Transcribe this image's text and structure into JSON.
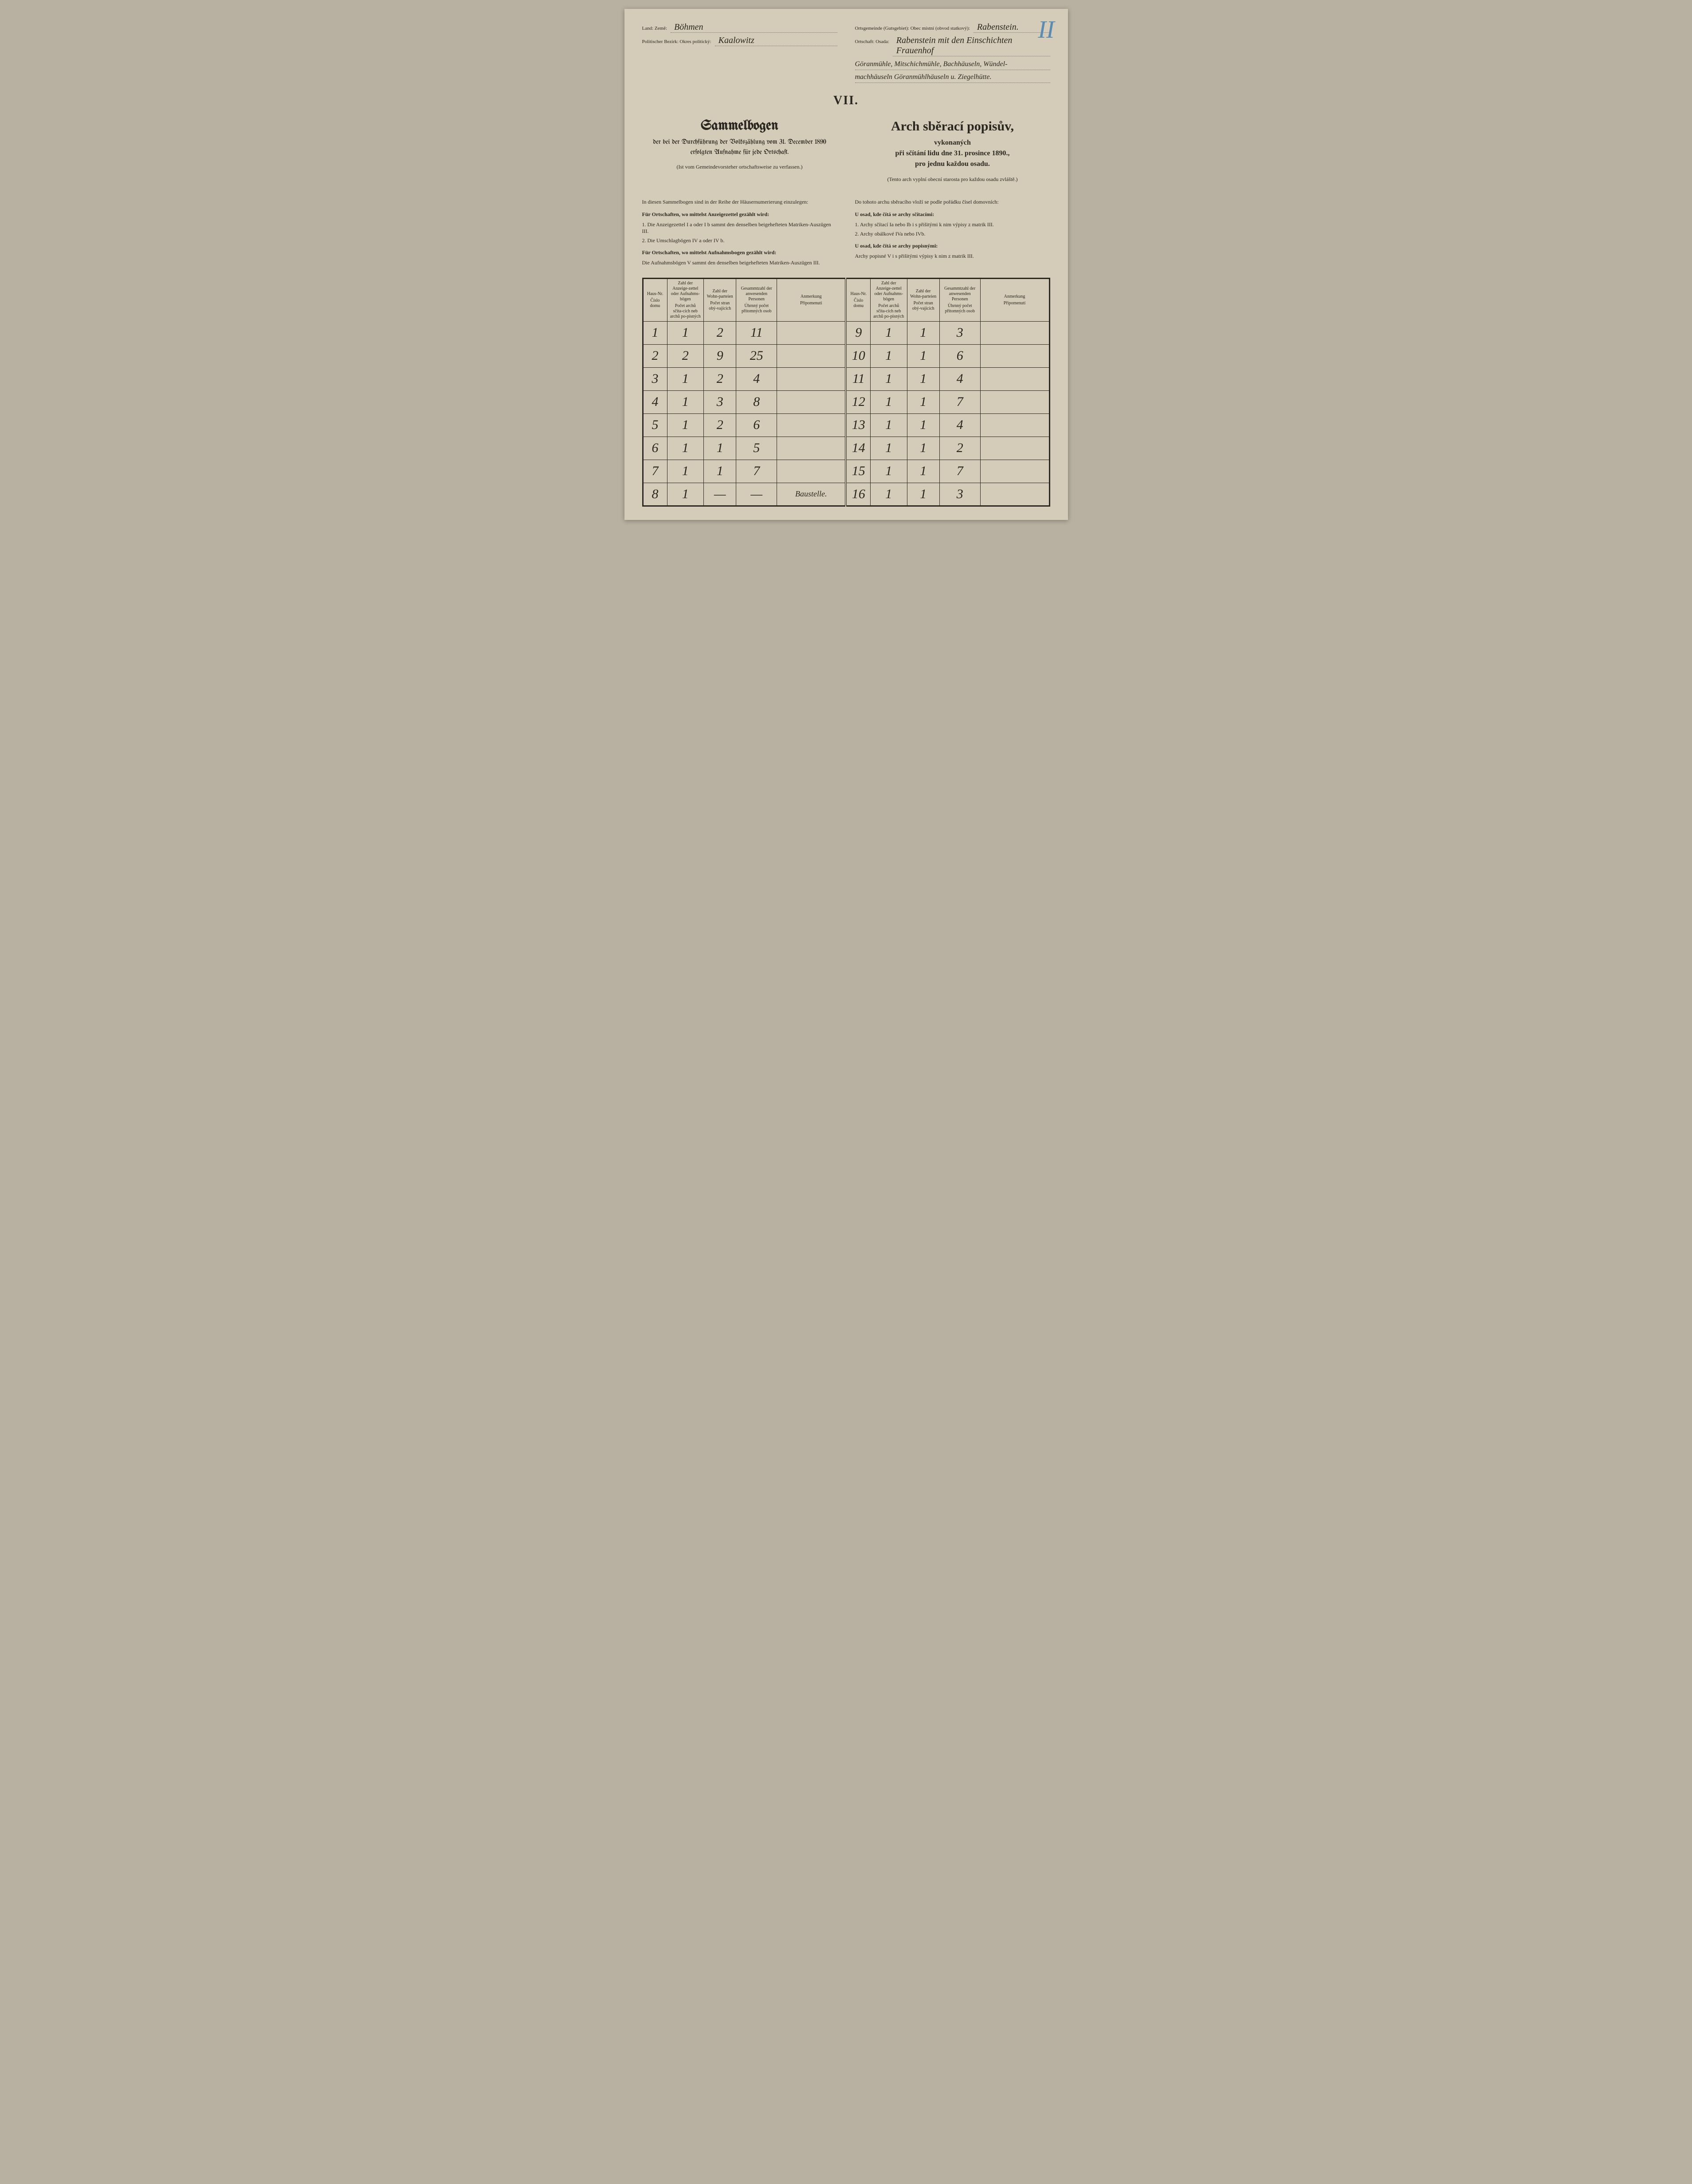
{
  "corner_mark": "II",
  "header": {
    "left": {
      "land_label": "Land:\nZemě:",
      "land_value": "Böhmen",
      "bezirk_label": "Politischer Bezirk:\nOkres politický:",
      "bezirk_value": "Kaalowitz"
    },
    "right": {
      "orts_label": "Ortsgemeinde (Gutsgebiet):\nObec místní (obvod statkový):",
      "orts_value": "Rabenstein.",
      "ortschaft_label": "Ortschaft:\nOsada:",
      "ortschaft_value": "Rabenstein mit den Einschichten Frauenhof",
      "osada_line2": "Göranmühle, Mitschichmühle, Bachhäuseln, Wündel-",
      "osada_line3": "machhäuseln Göranmühlhäuseln u. Ziegelhütte."
    }
  },
  "roman": "VII.",
  "titles": {
    "left_main": "Sammelbogen",
    "left_sub": "der bei der Durchführung der Volkszählung vom 31. December 1890 erfolgten Aufnahme für jede Ortschaft.",
    "right_main": "Arch sběrací popisův,",
    "right_sub1": "vykonaných",
    "right_sub2": "při sčítání lidu dne 31. prosince 1890.,",
    "right_sub3": "pro jednu každou osadu."
  },
  "paren": {
    "left": "(Ist vom Gemeindevorsteher ortschaftsweise zu verfassen.)",
    "right": "(Tento arch vyplní obecní starosta pro každou osadu zvláště.)"
  },
  "instructions": {
    "left": {
      "intro": "In diesen Sammelbogen sind in der Reihe der Häusernumerierung einzulegen:",
      "head1": "Für Ortschaften, wo mittelst Anzeigezettel gezählt wird:",
      "item1": "1. Die Anzeigezettel I a oder I b sammt den denselben beigehefteten Matriken-Auszügen III.",
      "item2": "2. Die Umschlagbögen IV a oder IV b.",
      "head2": "Für Ortschaften, wo mittelst Aufnahmsbogen gezählt wird:",
      "item3": "Die Aufnahmsbögen V sammt den denselben beigehefteten Matriken-Auszügen III."
    },
    "right": {
      "intro": "Do tohoto archu sběracího vloží se podle pořádku čísel domovních:",
      "head1": "U osad, kde čítá se archy sčítacími:",
      "item1": "1. Archy sčítací Ia nebo Ib i s přišitými k nim výpisy z matrik III.",
      "item2": "2. Archy obálkové IVa nebo IVb.",
      "head2": "U osad, kde čítá se archy popisnými:",
      "item3": "Archy popisné V i s přišitými výpisy k nim z matrik III."
    }
  },
  "table": {
    "headers": {
      "col1_de": "Haus-Nr.",
      "col1_cz": "Číslo domu",
      "col2_de": "Zahl der Anzeige-zettel oder Aufnahms-bögen",
      "col2_cz": "Počet archů sčíta-cích neb archů po-pisných",
      "col3_de": "Zahl der Wohn-parteien",
      "col3_cz": "Počet stran obý-vajících",
      "col4_de": "Gesammtzahl der anwesenden Personen",
      "col4_cz": "Úhrnný počet přítomných osob",
      "col5_de": "Anmerkung",
      "col5_cz": "Připomenutí"
    },
    "rows_left": [
      {
        "haus": "1",
        "zettel": "1",
        "parteien": "2",
        "personen": "11",
        "note": ""
      },
      {
        "haus": "2",
        "zettel": "2",
        "parteien": "9",
        "personen": "25",
        "note": ""
      },
      {
        "haus": "3",
        "zettel": "1",
        "parteien": "2",
        "personen": "4",
        "note": ""
      },
      {
        "haus": "4",
        "zettel": "1",
        "parteien": "3",
        "personen": "8",
        "note": ""
      },
      {
        "haus": "5",
        "zettel": "1",
        "parteien": "2",
        "personen": "6",
        "note": ""
      },
      {
        "haus": "6",
        "zettel": "1",
        "parteien": "1",
        "personen": "5",
        "note": ""
      },
      {
        "haus": "7",
        "zettel": "1",
        "parteien": "1",
        "personen": "7",
        "note": ""
      },
      {
        "haus": "8",
        "zettel": "1",
        "parteien": "—",
        "personen": "—",
        "note": "Baustelle."
      }
    ],
    "rows_right": [
      {
        "haus": "9",
        "zettel": "1",
        "parteien": "1",
        "personen": "3",
        "note": ""
      },
      {
        "haus": "10",
        "zettel": "1",
        "parteien": "1",
        "personen": "6",
        "note": ""
      },
      {
        "haus": "11",
        "zettel": "1",
        "parteien": "1",
        "personen": "4",
        "note": ""
      },
      {
        "haus": "12",
        "zettel": "1",
        "parteien": "1",
        "personen": "7",
        "note": ""
      },
      {
        "haus": "13",
        "zettel": "1",
        "parteien": "1",
        "personen": "4",
        "note": ""
      },
      {
        "haus": "14",
        "zettel": "1",
        "parteien": "1",
        "personen": "2",
        "note": ""
      },
      {
        "haus": "15",
        "zettel": "1",
        "parteien": "1",
        "personen": "7",
        "note": ""
      },
      {
        "haus": "16",
        "zettel": "1",
        "parteien": "1",
        "personen": "3",
        "note": ""
      }
    ]
  },
  "colors": {
    "paper": "#d4ccb8",
    "ink": "#2a2620",
    "blue_pencil": "#5a8bb0"
  }
}
